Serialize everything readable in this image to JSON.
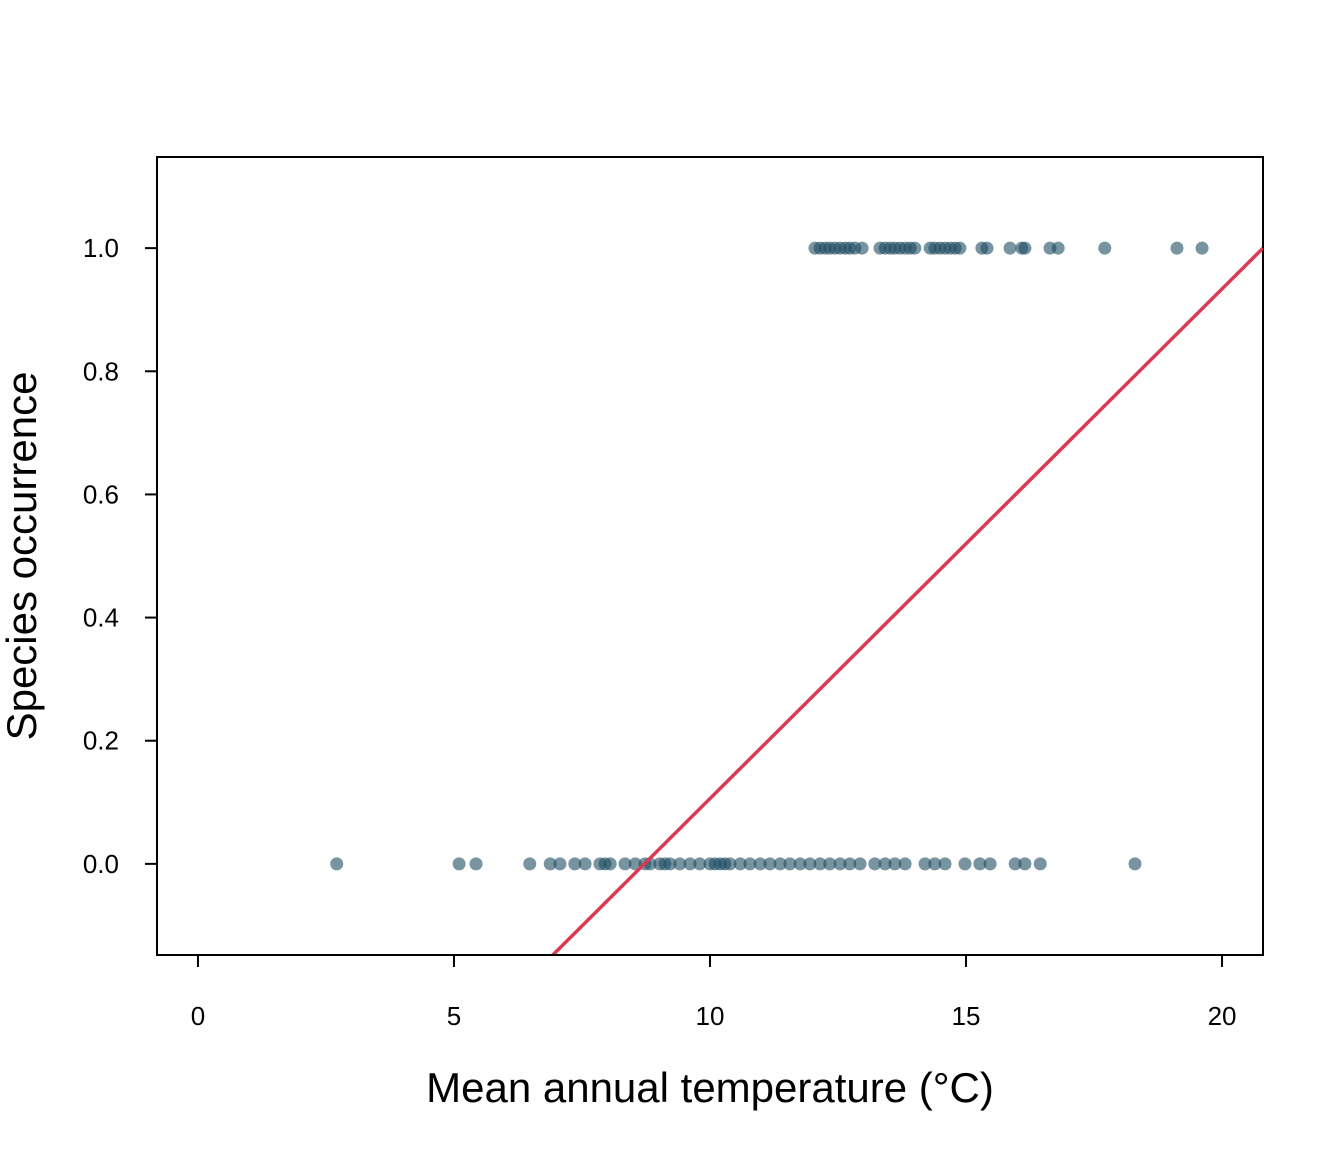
{
  "chart_data": {
    "type": "scatter",
    "xlabel": "Mean annual temperature (°C)",
    "ylabel": "Species occurrence",
    "xlim": [
      -0.8,
      20.8
    ],
    "ylim": [
      -0.148,
      1.148
    ],
    "xticks": [
      0,
      5,
      10,
      15,
      20
    ],
    "yticks": [
      {
        "value": 0,
        "label": "0.0"
      },
      0.2,
      0.4,
      0.6,
      0.8,
      {
        "value": 1,
        "label": "1.0"
      }
    ],
    "series": [
      {
        "type": "scatter",
        "color": "#1e4d63",
        "x": [
          12.05,
          12.15,
          12.25,
          12.34,
          12.44,
          12.54,
          12.64,
          12.73,
          12.83,
          12.97,
          13.32,
          13.42,
          13.52,
          13.61,
          13.71,
          13.81,
          13.91,
          14.0,
          14.3,
          14.39,
          14.49,
          14.59,
          14.69,
          14.79,
          14.88,
          15.31,
          15.41,
          15.86,
          16.09,
          16.15,
          16.64,
          16.8,
          17.71,
          19.12,
          19.61,
          2.71,
          5.1,
          5.43,
          6.48,
          6.88,
          7.07,
          7.36,
          7.56,
          7.85,
          7.95,
          8.05,
          8.34,
          8.54,
          8.73,
          8.83,
          9.02,
          9.12,
          9.22,
          9.41,
          9.61,
          9.8,
          10.0,
          10.1,
          10.2,
          10.29,
          10.39,
          10.59,
          10.78,
          10.98,
          11.17,
          11.37,
          11.56,
          11.76,
          11.95,
          12.15,
          12.34,
          12.54,
          12.73,
          12.93,
          13.22,
          13.42,
          13.61,
          13.81,
          14.2,
          14.39,
          14.59,
          14.98,
          15.27,
          15.47,
          15.96,
          16.15,
          16.45,
          18.3
        ],
        "values": [
          1,
          1,
          1,
          1,
          1,
          1,
          1,
          1,
          1,
          1,
          1,
          1,
          1,
          1,
          1,
          1,
          1,
          1,
          1,
          1,
          1,
          1,
          1,
          1,
          1,
          1,
          1,
          1,
          1,
          1,
          1,
          1,
          1,
          1,
          1,
          0,
          0,
          0,
          0,
          0,
          0,
          0,
          0,
          0,
          0,
          0,
          0,
          0,
          0,
          0,
          0,
          0,
          0,
          0,
          0,
          0,
          0,
          0,
          0,
          0,
          0,
          0,
          0,
          0,
          0,
          0,
          0,
          0,
          0,
          0,
          0,
          0,
          0,
          0,
          0,
          0,
          0,
          0,
          0,
          0,
          0,
          0,
          0,
          0,
          0,
          0,
          0,
          0
        ]
      },
      {
        "type": "line",
        "color": "#dc3a52",
        "x": [
          6.93,
          20.8
        ],
        "values": [
          -0.148,
          1.0
        ]
      }
    ]
  }
}
